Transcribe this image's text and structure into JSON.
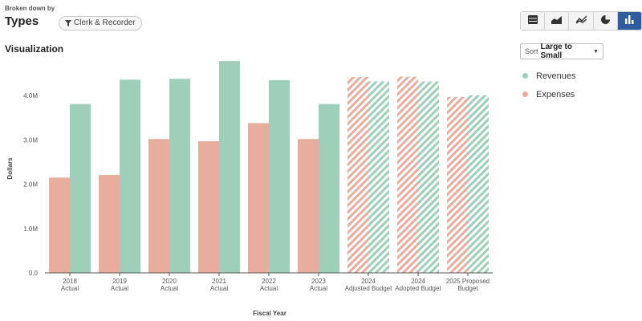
{
  "header": {
    "broken_down_by": "Broken down by",
    "title": "Types",
    "filter_chip": "Clerk & Recorder",
    "visualization_label": "Visualization"
  },
  "view_toggle": {
    "buttons": [
      {
        "icon": "table-icon",
        "active": false
      },
      {
        "icon": "area-chart-icon",
        "active": false
      },
      {
        "icon": "line-chart-icon",
        "active": false
      },
      {
        "icon": "pie-chart-icon",
        "active": false
      },
      {
        "icon": "bar-chart-icon",
        "active": true
      }
    ],
    "active_color": "#2e5c9e"
  },
  "sort": {
    "prefix": "Sort",
    "value": "Large to Small"
  },
  "legend": {
    "items": [
      {
        "label": "Revenues",
        "color": "#9ecfb9"
      },
      {
        "label": "Expenses",
        "color": "#e8ad9c"
      }
    ]
  },
  "chart_data": {
    "type": "bar",
    "categories": [
      [
        "2018",
        "Actual"
      ],
      [
        "2019",
        "Actual"
      ],
      [
        "2020",
        "Actual"
      ],
      [
        "2021",
        "Actual"
      ],
      [
        "2022",
        "Actual"
      ],
      [
        "2023",
        "Actual"
      ],
      [
        "2024",
        "Adjusted Budget"
      ],
      [
        "2024",
        "Adopted Budget"
      ],
      [
        "2025 Proposed",
        "Budget"
      ]
    ],
    "series": [
      {
        "name": "Expenses",
        "color": "#e8ad9c",
        "values": [
          2150000,
          2210000,
          3020000,
          2970000,
          3380000,
          3020000,
          4420000,
          4430000,
          3970000
        ]
      },
      {
        "name": "Revenues",
        "color": "#9ecfb9",
        "values": [
          3810000,
          4360000,
          4380000,
          4780000,
          4350000,
          3810000,
          4320000,
          4320000,
          4010000
        ]
      }
    ],
    "hatched_categories": [
      6,
      7,
      8
    ],
    "xlabel": "Fiscal Year",
    "ylabel": "Dollars",
    "ylim": [
      0,
      4800000
    ],
    "yticks": [
      {
        "value": 0,
        "label": "0.0"
      },
      {
        "value": 1000000,
        "label": "1.0M"
      },
      {
        "value": 2000000,
        "label": "2.0M"
      },
      {
        "value": 3000000,
        "label": "3.0M"
      },
      {
        "value": 4000000,
        "label": "4.0M"
      }
    ],
    "grid": false,
    "legend_position": "right"
  }
}
